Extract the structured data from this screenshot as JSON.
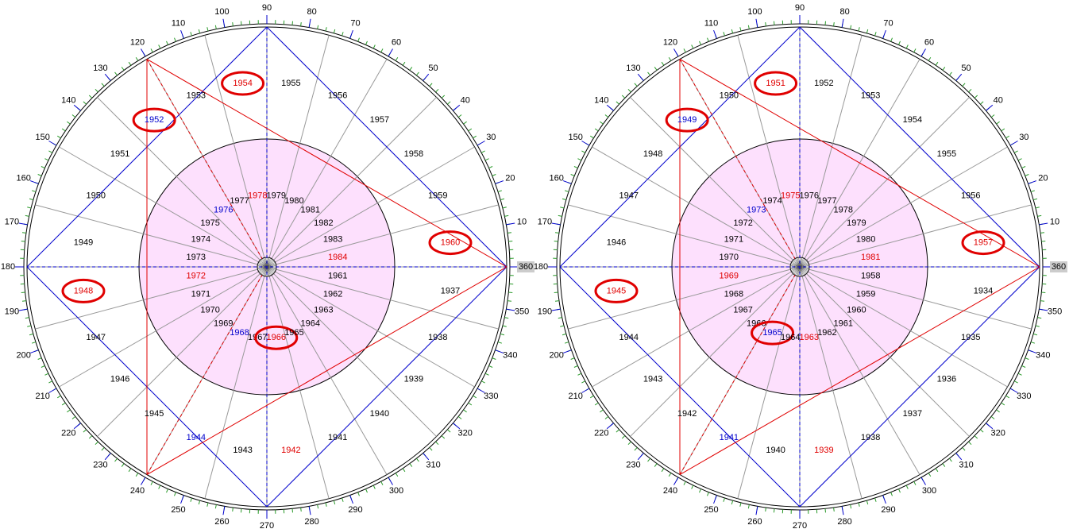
{
  "wheels": [
    {
      "degree_ticks": [
        360,
        10,
        20,
        30,
        40,
        50,
        60,
        70,
        80,
        90,
        100,
        110,
        120,
        130,
        140,
        150,
        160,
        170,
        180,
        190,
        200,
        210,
        220,
        230,
        240,
        250,
        260,
        270,
        280,
        290,
        300,
        310,
        320,
        330,
        340,
        350
      ],
      "outer": [
        {
          "text": "1960",
          "color": "#e00000",
          "circled": true
        },
        {
          "text": "1959"
        },
        {
          "text": "1958"
        },
        {
          "text": "1957"
        },
        {
          "text": "1956"
        },
        {
          "text": "1955"
        },
        {
          "text": "1954",
          "color": "#e00000",
          "circled": true
        },
        {
          "text": "1953"
        },
        {
          "text": "1952",
          "color": "#0000cc",
          "circled": true
        },
        {
          "text": "1951"
        },
        {
          "text": "1950"
        },
        {
          "text": "1949"
        },
        {
          "text": "1948",
          "color": "#e00000",
          "circled": true
        },
        {
          "text": "1947"
        },
        {
          "text": "1946"
        },
        {
          "text": "1945"
        },
        {
          "text": "1944",
          "color": "#0000cc"
        },
        {
          "text": "1943"
        },
        {
          "text": "1942",
          "color": "#e00000"
        },
        {
          "text": "1941"
        },
        {
          "text": "1940"
        },
        {
          "text": "1939"
        },
        {
          "text": "1938"
        },
        {
          "text": "1937"
        }
      ],
      "inner": [
        {
          "text": "1984",
          "color": "#e00000"
        },
        {
          "text": "1983"
        },
        {
          "text": "1982"
        },
        {
          "text": "1981"
        },
        {
          "text": "1980"
        },
        {
          "text": "1979"
        },
        {
          "text": "1978",
          "color": "#e00000"
        },
        {
          "text": "1977"
        },
        {
          "text": "1976",
          "color": "#0000cc"
        },
        {
          "text": "1975"
        },
        {
          "text": "1974"
        },
        {
          "text": "1973"
        },
        {
          "text": "1972",
          "color": "#e00000"
        },
        {
          "text": "1971"
        },
        {
          "text": "1970"
        },
        {
          "text": "1969"
        },
        {
          "text": "1968",
          "color": "#0000cc"
        },
        {
          "text": "1967"
        },
        {
          "text": "1966",
          "color": "#e00000",
          "circled": true
        },
        {
          "text": "1965"
        },
        {
          "text": "1964"
        },
        {
          "text": "1963"
        },
        {
          "text": "1962"
        },
        {
          "text": "1961"
        }
      ]
    },
    {
      "degree_ticks": [
        360,
        10,
        20,
        30,
        40,
        50,
        60,
        70,
        80,
        90,
        100,
        110,
        120,
        130,
        140,
        150,
        160,
        170,
        180,
        190,
        200,
        210,
        220,
        230,
        240,
        250,
        260,
        270,
        280,
        290,
        300,
        310,
        320,
        330,
        340,
        350
      ],
      "outer": [
        {
          "text": "1957",
          "color": "#e00000",
          "circled": true
        },
        {
          "text": "1956"
        },
        {
          "text": "1955"
        },
        {
          "text": "1954"
        },
        {
          "text": "1953"
        },
        {
          "text": "1952"
        },
        {
          "text": "1951",
          "color": "#e00000",
          "circled": true
        },
        {
          "text": "1950"
        },
        {
          "text": "1949",
          "color": "#0000cc",
          "circled": true
        },
        {
          "text": "1948"
        },
        {
          "text": "1947"
        },
        {
          "text": "1946"
        },
        {
          "text": "1945",
          "color": "#e00000",
          "circled": true
        },
        {
          "text": "1944"
        },
        {
          "text": "1943"
        },
        {
          "text": "1942"
        },
        {
          "text": "1941",
          "color": "#0000cc"
        },
        {
          "text": "1940"
        },
        {
          "text": "1939",
          "color": "#e00000"
        },
        {
          "text": "1938"
        },
        {
          "text": "1937"
        },
        {
          "text": "1936"
        },
        {
          "text": "1935"
        },
        {
          "text": "1934"
        }
      ],
      "inner": [
        {
          "text": "1981",
          "color": "#e00000"
        },
        {
          "text": "1980"
        },
        {
          "text": "1979"
        },
        {
          "text": "1978"
        },
        {
          "text": "1977"
        },
        {
          "text": "1976"
        },
        {
          "text": "1975",
          "color": "#e00000"
        },
        {
          "text": "1974"
        },
        {
          "text": "1973",
          "color": "#0000cc"
        },
        {
          "text": "1972"
        },
        {
          "text": "1971"
        },
        {
          "text": "1970"
        },
        {
          "text": "1969",
          "color": "#e00000"
        },
        {
          "text": "1968"
        },
        {
          "text": "1967"
        },
        {
          "text": "1966"
        },
        {
          "text": "1965",
          "color": "#0000cc",
          "circled": true
        },
        {
          "text": "1964"
        },
        {
          "text": "1963",
          "color": "#e00000"
        },
        {
          "text": "1962"
        },
        {
          "text": "1961"
        },
        {
          "text": "1960"
        },
        {
          "text": "1959"
        },
        {
          "text": "1958"
        }
      ]
    }
  ]
}
